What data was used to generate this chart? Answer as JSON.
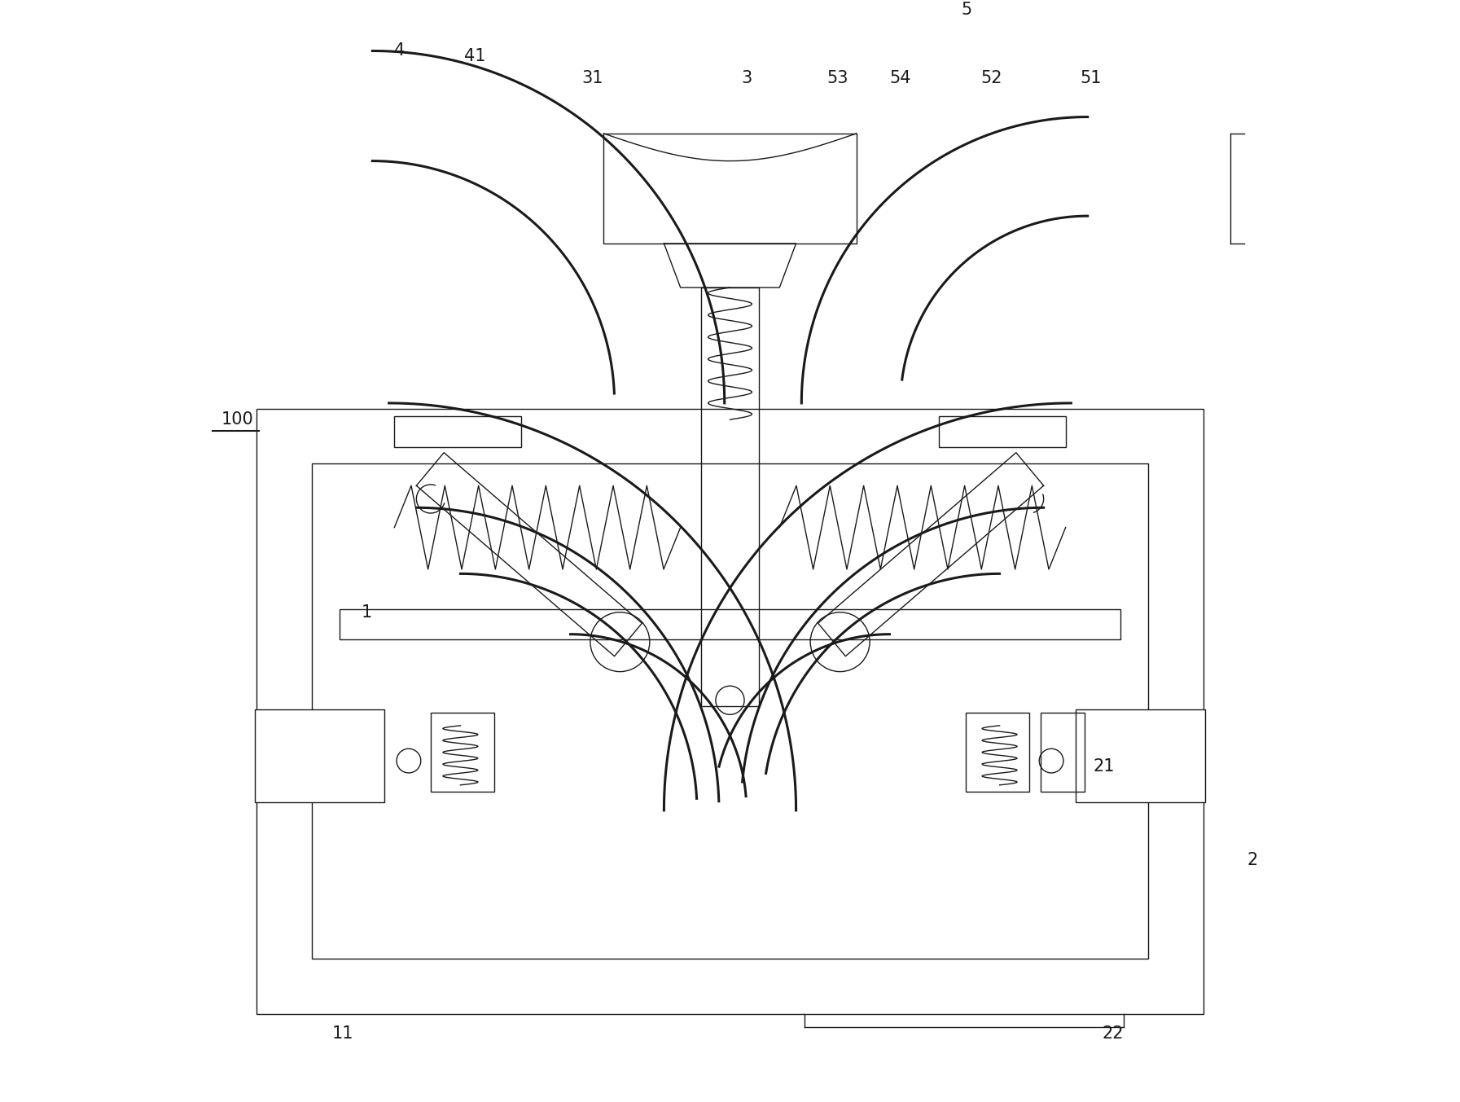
{
  "bg_color": "#ffffff",
  "line_color": "#1a1a1a",
  "thin_lw": 1.0,
  "thick_lw": 2.2,
  "medium_lw": 1.5,
  "fig_width": 17.93,
  "fig_height": 13.53
}
